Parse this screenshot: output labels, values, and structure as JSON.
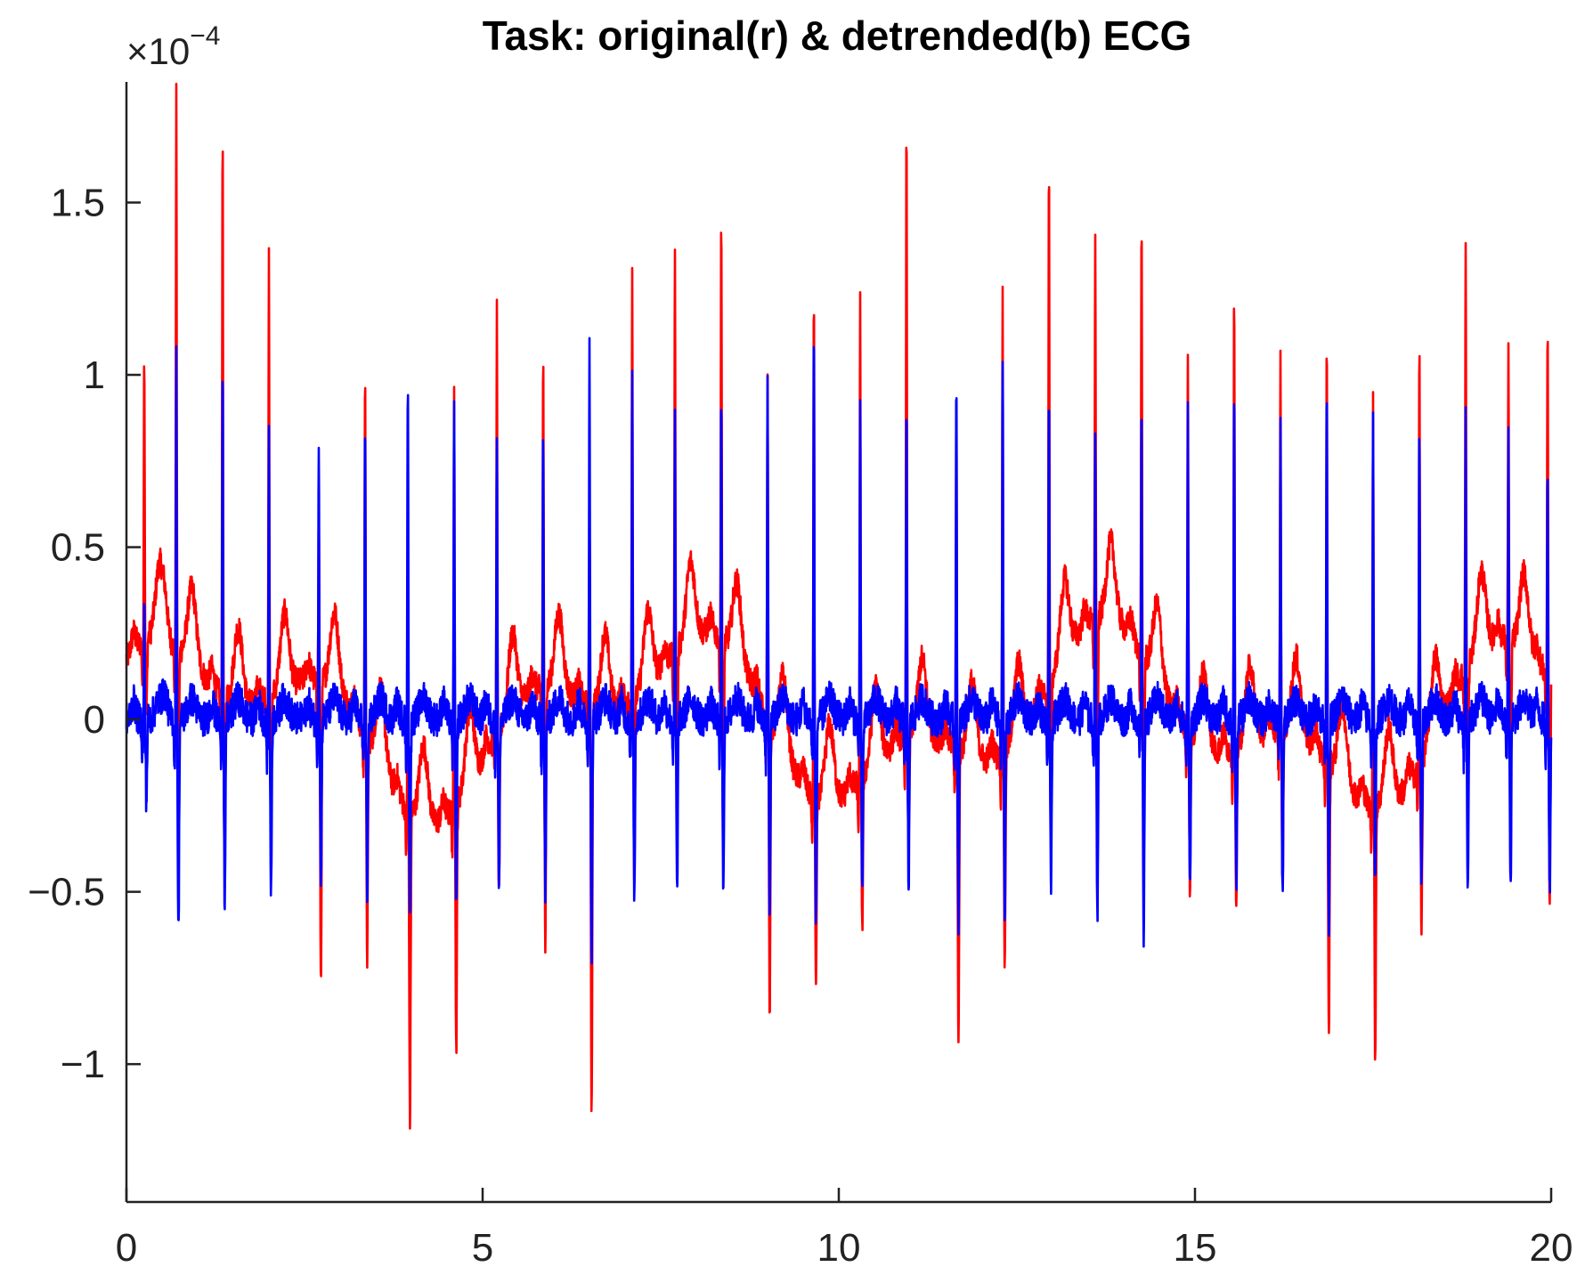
{
  "chart_data": {
    "type": "line",
    "title": "Task: original(r) & detrended(b) ECG",
    "xlabel": "",
    "ylabel": "",
    "xlim": [
      0,
      20
    ],
    "ylim": [
      -1.4,
      1.85
    ],
    "y_scale_multiplier": {
      "prefix": "×10",
      "exponent": "−4"
    },
    "x_ticks": [
      0,
      5,
      10,
      15,
      20
    ],
    "x_tick_labels": [
      "0",
      "5",
      "10",
      "15",
      "20"
    ],
    "y_ticks": [
      -1,
      -0.5,
      0,
      0.5,
      1,
      1.5
    ],
    "y_tick_labels": [
      "−1",
      "−0.5",
      "0",
      "0.5",
      "1",
      "1.5"
    ],
    "grid": false,
    "legend": "none",
    "series": [
      {
        "key": "original",
        "color": "#ff0000",
        "beats": [
          {
            "x": 0.25,
            "peak": 0.83,
            "trough": -0.22
          },
          {
            "x": 0.7,
            "peak": 1.6,
            "trough": -0.55
          },
          {
            "x": 1.35,
            "peak": 1.63,
            "trough": -0.45
          },
          {
            "x": 2.0,
            "peak": 1.3,
            "trough": -0.38
          },
          {
            "x": 2.7,
            "peak": 0.5,
            "trough": -0.88
          },
          {
            "x": 3.35,
            "peak": 1.07,
            "trough": -0.64
          },
          {
            "x": 3.95,
            "peak": 0.5,
            "trough": -0.91
          },
          {
            "x": 4.6,
            "peak": 1.26,
            "trough": -0.7
          },
          {
            "x": 5.2,
            "peak": 1.23,
            "trough": -0.5
          },
          {
            "x": 5.85,
            "peak": 0.96,
            "trough": -0.73
          },
          {
            "x": 6.5,
            "peak": 0.55,
            "trough": -1.17
          },
          {
            "x": 7.1,
            "peak": 1.27,
            "trough": -0.5
          },
          {
            "x": 7.7,
            "peak": 1.16,
            "trough": -0.45
          },
          {
            "x": 8.35,
            "peak": 1.21,
            "trough": -0.4
          },
          {
            "x": 9.0,
            "peak": 0.98,
            "trough": -0.83
          },
          {
            "x": 9.65,
            "peak": 1.48,
            "trough": -0.55
          },
          {
            "x": 10.3,
            "peak": 1.42,
            "trough": -0.42
          },
          {
            "x": 10.95,
            "peak": 1.78,
            "trough": -0.3
          },
          {
            "x": 11.65,
            "peak": 0.98,
            "trough": -0.87
          },
          {
            "x": 12.3,
            "peak": 1.32,
            "trough": -0.62
          },
          {
            "x": 12.95,
            "peak": 1.54,
            "trough": -0.38
          },
          {
            "x": 13.6,
            "peak": 1.12,
            "trough": -0.48
          },
          {
            "x": 14.25,
            "peak": 1.24,
            "trough": -0.62
          },
          {
            "x": 14.9,
            "peak": 1.1,
            "trough": -0.46
          },
          {
            "x": 15.55,
            "peak": 1.32,
            "trough": -0.5
          },
          {
            "x": 16.2,
            "peak": 1.08,
            "trough": -0.45
          },
          {
            "x": 16.85,
            "peak": 1.2,
            "trough": -0.8
          },
          {
            "x": 17.5,
            "peak": 1.19,
            "trough": -0.72
          },
          {
            "x": 18.15,
            "peak": 1.23,
            "trough": -0.48
          },
          {
            "x": 18.8,
            "peak": 1.24,
            "trough": -0.5
          },
          {
            "x": 19.4,
            "peak": 0.86,
            "trough": -0.7
          },
          {
            "x": 19.95,
            "peak": 1.02,
            "trough": -0.68
          }
        ]
      },
      {
        "key": "detrended",
        "color": "#0000ff",
        "beats": [
          {
            "x": 0.25,
            "peak": 0.33,
            "trough": -0.24
          },
          {
            "x": 0.7,
            "peak": 1.08,
            "trough": -0.63
          },
          {
            "x": 1.35,
            "peak": 1.05,
            "trough": -0.57
          },
          {
            "x": 2.0,
            "peak": 0.83,
            "trough": -0.51
          },
          {
            "x": 2.7,
            "peak": 0.84,
            "trough": -0.48
          },
          {
            "x": 3.35,
            "peak": 0.82,
            "trough": -0.5
          },
          {
            "x": 3.95,
            "peak": 1.0,
            "trough": -0.58
          },
          {
            "x": 4.6,
            "peak": 0.97,
            "trough": -0.55
          },
          {
            "x": 5.2,
            "peak": 0.86,
            "trough": -0.5
          },
          {
            "x": 5.85,
            "peak": 0.85,
            "trough": -0.51
          },
          {
            "x": 6.5,
            "peak": 1.11,
            "trough": -0.68
          },
          {
            "x": 7.1,
            "peak": 1.02,
            "trough": -0.51
          },
          {
            "x": 7.7,
            "peak": 0.88,
            "trough": -0.5
          },
          {
            "x": 8.35,
            "peak": 0.92,
            "trough": -0.5
          },
          {
            "x": 9.0,
            "peak": 0.99,
            "trough": -0.55
          },
          {
            "x": 9.65,
            "peak": 1.13,
            "trough": -0.6
          },
          {
            "x": 10.3,
            "peak": 0.96,
            "trough": -0.53
          },
          {
            "x": 10.95,
            "peak": 0.89,
            "trough": -0.5
          },
          {
            "x": 11.65,
            "peak": 0.94,
            "trough": -0.58
          },
          {
            "x": 12.3,
            "peak": 1.09,
            "trough": -0.58
          },
          {
            "x": 12.95,
            "peak": 0.9,
            "trough": -0.5
          },
          {
            "x": 13.6,
            "peak": 0.86,
            "trough": -0.55
          },
          {
            "x": 14.25,
            "peak": 0.88,
            "trough": -0.62
          },
          {
            "x": 14.9,
            "peak": 0.88,
            "trough": -0.5
          },
          {
            "x": 15.55,
            "peak": 0.92,
            "trough": -0.5
          },
          {
            "x": 16.2,
            "peak": 0.83,
            "trough": -0.5
          },
          {
            "x": 16.85,
            "peak": 0.99,
            "trough": -0.58
          },
          {
            "x": 17.5,
            "peak": 0.86,
            "trough": -0.5
          },
          {
            "x": 18.15,
            "peak": 0.84,
            "trough": -0.5
          },
          {
            "x": 18.8,
            "peak": 0.88,
            "trough": -0.5
          },
          {
            "x": 19.4,
            "peak": 0.86,
            "trough": -0.5
          },
          {
            "x": 19.95,
            "peak": 0.77,
            "trough": -0.5
          }
        ]
      }
    ]
  }
}
